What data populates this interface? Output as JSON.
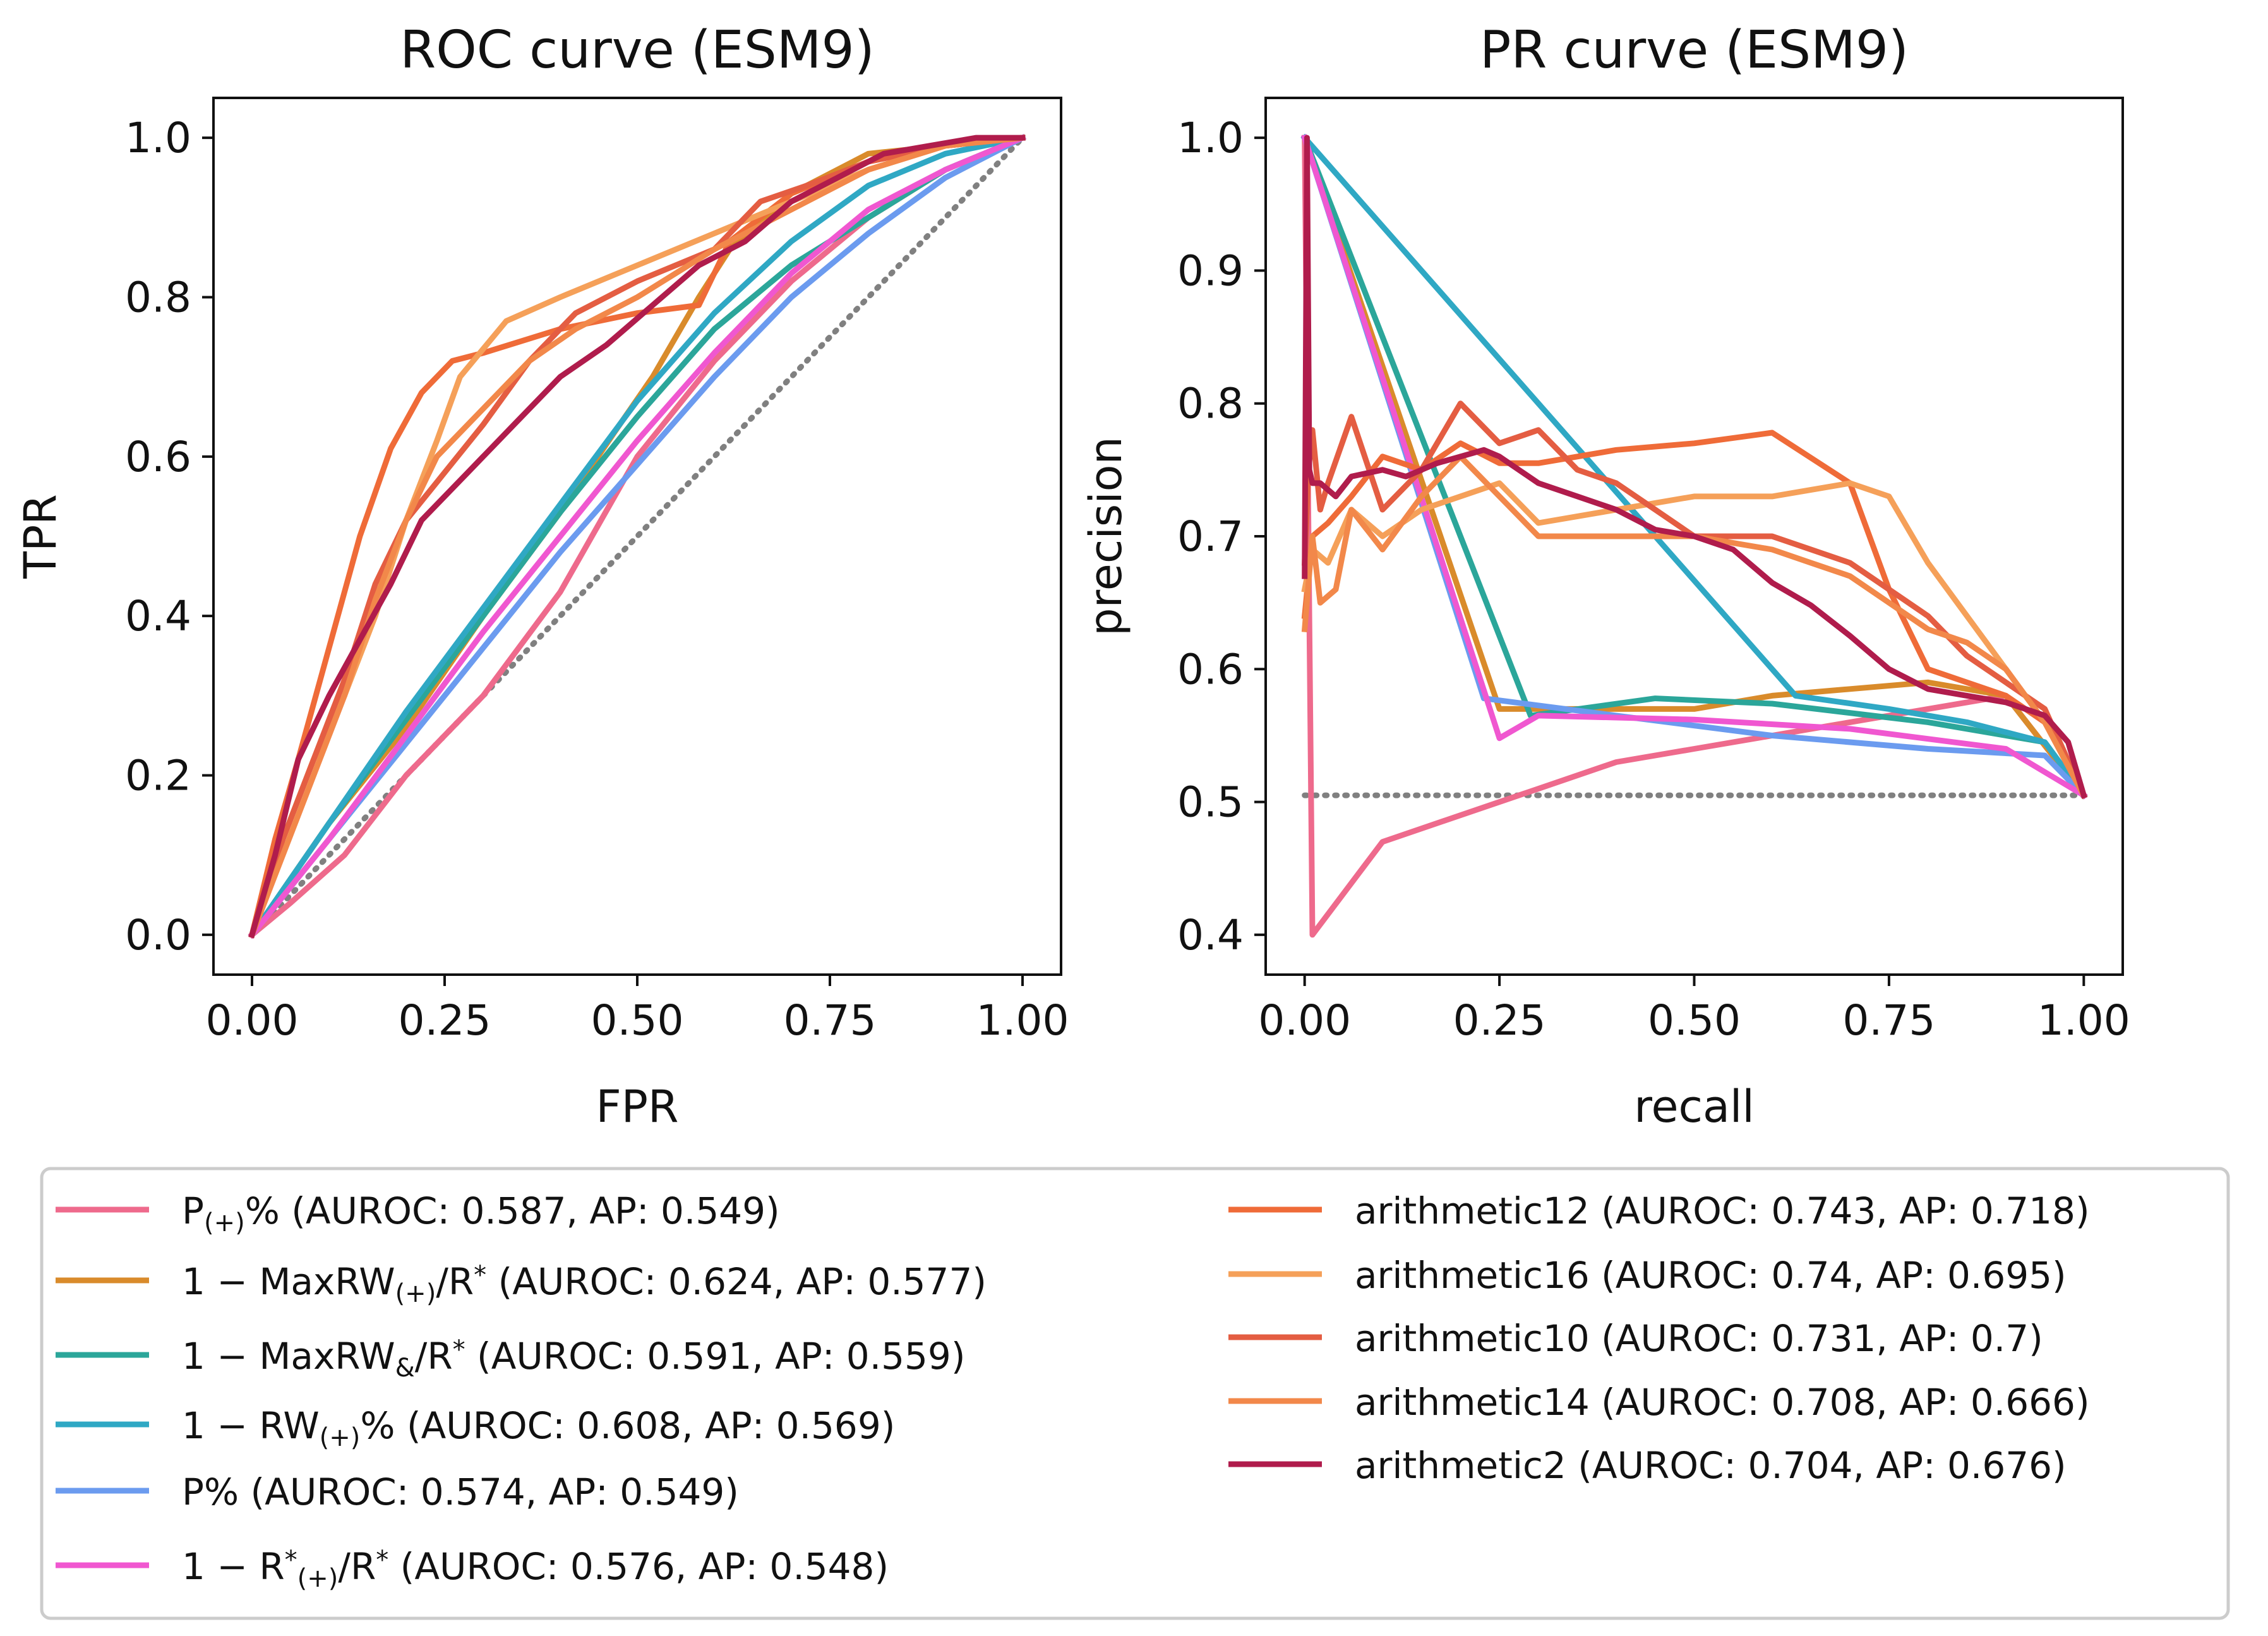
{
  "figure": {
    "background": "#ffffff"
  },
  "chart_data": [
    {
      "type": "line",
      "title": "ROC curve (ESM9)",
      "xlabel": "FPR",
      "ylabel": "TPR",
      "xlim": [
        -0.05,
        1.05
      ],
      "ylim": [
        -0.05,
        1.05
      ],
      "xticks": [
        0.0,
        0.25,
        0.5,
        0.75,
        1.0
      ],
      "xtick_labels": [
        "0.00",
        "0.25",
        "0.50",
        "0.75",
        "1.00"
      ],
      "yticks": [
        0.0,
        0.2,
        0.4,
        0.6,
        0.8,
        1.0
      ],
      "ytick_labels": [
        "0.0",
        "0.2",
        "0.4",
        "0.6",
        "0.8",
        "1.0"
      ],
      "grid": false,
      "baseline": {
        "style": "dotted",
        "color": "#808080",
        "x": [
          0,
          1
        ],
        "y": [
          0,
          1
        ]
      },
      "series": [
        {
          "key": "p_plus_pct",
          "color": "#ee6a8c",
          "x": [
            0,
            0.05,
            0.12,
            0.2,
            0.3,
            0.4,
            0.5,
            0.6,
            0.7,
            0.8,
            0.9,
            1.0
          ],
          "y": [
            0,
            0.04,
            0.1,
            0.2,
            0.3,
            0.43,
            0.6,
            0.72,
            0.82,
            0.9,
            0.96,
            1.0
          ]
        },
        {
          "key": "maxrw_plus",
          "color": "#d98b2b",
          "x": [
            0,
            0.05,
            0.1,
            0.2,
            0.3,
            0.4,
            0.47,
            0.52,
            0.58,
            0.62,
            0.7,
            0.8,
            0.9,
            1.0
          ],
          "y": [
            0,
            0.07,
            0.14,
            0.26,
            0.4,
            0.53,
            0.63,
            0.7,
            0.8,
            0.86,
            0.93,
            0.98,
            0.99,
            1.0
          ]
        },
        {
          "key": "maxrw_amp",
          "color": "#2ba69a",
          "x": [
            0,
            0.1,
            0.2,
            0.3,
            0.4,
            0.5,
            0.6,
            0.7,
            0.8,
            0.9,
            1.0
          ],
          "y": [
            0,
            0.14,
            0.27,
            0.4,
            0.53,
            0.65,
            0.76,
            0.84,
            0.9,
            0.96,
            1.0
          ]
        },
        {
          "key": "rw_plus_pct",
          "color": "#2fa8c4",
          "x": [
            0,
            0.1,
            0.2,
            0.3,
            0.4,
            0.5,
            0.6,
            0.7,
            0.8,
            0.9,
            1.0
          ],
          "y": [
            0,
            0.14,
            0.28,
            0.41,
            0.54,
            0.67,
            0.78,
            0.87,
            0.94,
            0.98,
            1.0
          ]
        },
        {
          "key": "p_pct",
          "color": "#6b9bef",
          "x": [
            0,
            0.1,
            0.2,
            0.3,
            0.4,
            0.5,
            0.6,
            0.7,
            0.8,
            0.9,
            1.0
          ],
          "y": [
            0,
            0.12,
            0.24,
            0.36,
            0.48,
            0.59,
            0.7,
            0.8,
            0.88,
            0.95,
            1.0
          ]
        },
        {
          "key": "r_plus",
          "color": "#f057d0",
          "x": [
            0,
            0.1,
            0.2,
            0.3,
            0.4,
            0.5,
            0.6,
            0.7,
            0.8,
            0.9,
            1.0
          ],
          "y": [
            0,
            0.12,
            0.25,
            0.38,
            0.5,
            0.62,
            0.73,
            0.83,
            0.91,
            0.96,
            1.0
          ]
        },
        {
          "key": "arith12",
          "color": "#ef6b38",
          "x": [
            0,
            0.03,
            0.06,
            0.1,
            0.14,
            0.18,
            0.22,
            0.26,
            0.3,
            0.4,
            0.5,
            0.58,
            0.62,
            0.7,
            0.8,
            0.9,
            1.0
          ],
          "y": [
            0,
            0.12,
            0.22,
            0.36,
            0.5,
            0.61,
            0.68,
            0.72,
            0.73,
            0.76,
            0.78,
            0.79,
            0.87,
            0.93,
            0.97,
            0.99,
            1.0
          ]
        },
        {
          "key": "arith16",
          "color": "#f5a059",
          "x": [
            0,
            0.04,
            0.08,
            0.12,
            0.16,
            0.2,
            0.24,
            0.27,
            0.33,
            0.4,
            0.5,
            0.6,
            0.7,
            0.8,
            0.9,
            1.0
          ],
          "y": [
            0,
            0.12,
            0.22,
            0.3,
            0.4,
            0.52,
            0.62,
            0.7,
            0.77,
            0.8,
            0.84,
            0.88,
            0.92,
            0.96,
            0.99,
            1.0
          ]
        },
        {
          "key": "arith10",
          "color": "#e45d42",
          "x": [
            0,
            0.04,
            0.08,
            0.12,
            0.16,
            0.2,
            0.25,
            0.3,
            0.36,
            0.42,
            0.5,
            0.6,
            0.66,
            0.72,
            0.8,
            0.9,
            1.0
          ],
          "y": [
            0,
            0.12,
            0.22,
            0.32,
            0.44,
            0.52,
            0.58,
            0.64,
            0.72,
            0.78,
            0.82,
            0.86,
            0.92,
            0.94,
            0.97,
            0.99,
            1.0
          ]
        },
        {
          "key": "arith14",
          "color": "#f2884a",
          "x": [
            0,
            0.04,
            0.08,
            0.12,
            0.16,
            0.2,
            0.24,
            0.3,
            0.36,
            0.42,
            0.5,
            0.6,
            0.7,
            0.8,
            0.9,
            1.0
          ],
          "y": [
            0,
            0.1,
            0.2,
            0.3,
            0.42,
            0.52,
            0.6,
            0.66,
            0.72,
            0.76,
            0.8,
            0.86,
            0.91,
            0.96,
            0.99,
            1.0
          ]
        },
        {
          "key": "arith2",
          "color": "#b01c4c",
          "x": [
            0,
            0.03,
            0.06,
            0.1,
            0.14,
            0.18,
            0.22,
            0.28,
            0.34,
            0.4,
            0.46,
            0.52,
            0.58,
            0.64,
            0.7,
            0.76,
            0.82,
            0.88,
            0.94,
            1.0
          ],
          "y": [
            0,
            0.1,
            0.22,
            0.3,
            0.37,
            0.44,
            0.52,
            0.58,
            0.64,
            0.7,
            0.74,
            0.79,
            0.84,
            0.87,
            0.92,
            0.95,
            0.98,
            0.99,
            1.0,
            1.0
          ]
        }
      ]
    },
    {
      "type": "line",
      "title": "PR curve (ESM9)",
      "xlabel": "recall",
      "ylabel": "precision",
      "xlim": [
        -0.05,
        1.05
      ],
      "ylim": [
        0.37,
        1.03
      ],
      "xticks": [
        0.0,
        0.25,
        0.5,
        0.75,
        1.0
      ],
      "xtick_labels": [
        "0.00",
        "0.25",
        "0.50",
        "0.75",
        "1.00"
      ],
      "yticks": [
        0.4,
        0.5,
        0.6,
        0.7,
        0.8,
        0.9,
        1.0
      ],
      "ytick_labels": [
        "0.4",
        "0.5",
        "0.6",
        "0.7",
        "0.8",
        "0.9",
        "1.0"
      ],
      "grid": false,
      "baseline": {
        "style": "dotted",
        "color": "#808080",
        "x": [
          0,
          1
        ],
        "y": [
          0.505,
          0.505
        ]
      },
      "series": [
        {
          "key": "p_plus_pct",
          "color": "#ee6a8c",
          "x": [
            0,
            0.01,
            0.1,
            0.2,
            0.3,
            0.4,
            0.5,
            0.6,
            0.7,
            0.8,
            0.9,
            1.0
          ],
          "y": [
            1.0,
            0.4,
            0.47,
            0.49,
            0.51,
            0.53,
            0.54,
            0.55,
            0.56,
            0.57,
            0.58,
            0.505
          ]
        },
        {
          "key": "maxrw_plus",
          "color": "#d98b2b",
          "x": [
            0,
            0.25,
            0.5,
            0.6,
            0.7,
            0.8,
            0.9,
            1.0
          ],
          "y": [
            1.0,
            0.57,
            0.57,
            0.58,
            0.585,
            0.59,
            0.58,
            0.505
          ]
        },
        {
          "key": "maxrw_amp",
          "color": "#2ba69a",
          "x": [
            0,
            0.29,
            0.45,
            0.6,
            0.8,
            0.95,
            1.0
          ],
          "y": [
            1.0,
            0.565,
            0.578,
            0.574,
            0.56,
            0.545,
            0.505
          ]
        },
        {
          "key": "rw_plus_pct",
          "color": "#2fa8c4",
          "x": [
            0,
            0.63,
            0.75,
            0.85,
            0.95,
            1.0
          ],
          "y": [
            1.0,
            0.58,
            0.57,
            0.56,
            0.545,
            0.505
          ]
        },
        {
          "key": "p_pct",
          "color": "#6b9bef",
          "x": [
            0,
            0.23,
            0.4,
            0.6,
            0.8,
            0.95,
            1.0
          ],
          "y": [
            1.0,
            0.578,
            0.565,
            0.55,
            0.54,
            0.535,
            0.505
          ]
        },
        {
          "key": "r_plus",
          "color": "#f057d0",
          "x": [
            0,
            0.25,
            0.3,
            0.5,
            0.7,
            0.9,
            1.0
          ],
          "y": [
            1.0,
            0.548,
            0.565,
            0.562,
            0.555,
            0.54,
            0.505
          ]
        },
        {
          "key": "arith12",
          "color": "#ef6b38",
          "x": [
            0,
            0.01,
            0.03,
            0.06,
            0.1,
            0.15,
            0.2,
            0.25,
            0.3,
            0.4,
            0.5,
            0.6,
            0.7,
            0.75,
            0.8,
            0.9,
            0.95,
            1.0
          ],
          "y": [
            0.64,
            0.7,
            0.71,
            0.73,
            0.76,
            0.75,
            0.77,
            0.755,
            0.755,
            0.765,
            0.77,
            0.778,
            0.74,
            0.66,
            0.6,
            0.58,
            0.56,
            0.505
          ]
        },
        {
          "key": "arith16",
          "color": "#f5a059",
          "x": [
            0,
            0.01,
            0.03,
            0.06,
            0.1,
            0.15,
            0.2,
            0.25,
            0.3,
            0.4,
            0.5,
            0.6,
            0.7,
            0.75,
            0.8,
            0.9,
            0.95,
            1.0
          ],
          "y": [
            0.66,
            0.69,
            0.68,
            0.72,
            0.7,
            0.72,
            0.73,
            0.74,
            0.71,
            0.72,
            0.73,
            0.73,
            0.74,
            0.73,
            0.68,
            0.6,
            0.56,
            0.505
          ]
        },
        {
          "key": "arith10",
          "color": "#e45d42",
          "x": [
            0,
            0.005,
            0.01,
            0.02,
            0.03,
            0.06,
            0.1,
            0.15,
            0.2,
            0.25,
            0.3,
            0.35,
            0.4,
            0.45,
            0.5,
            0.55,
            0.6,
            0.65,
            0.7,
            0.75,
            0.8,
            0.85,
            0.9,
            0.95,
            1.0
          ],
          "y": [
            0.68,
            0.75,
            0.78,
            0.72,
            0.74,
            0.79,
            0.72,
            0.75,
            0.8,
            0.77,
            0.78,
            0.75,
            0.74,
            0.72,
            0.7,
            0.7,
            0.7,
            0.69,
            0.68,
            0.66,
            0.64,
            0.61,
            0.59,
            0.57,
            0.505
          ]
        },
        {
          "key": "arith14",
          "color": "#f2884a",
          "x": [
            0,
            0.01,
            0.02,
            0.04,
            0.06,
            0.1,
            0.15,
            0.2,
            0.25,
            0.3,
            0.35,
            0.4,
            0.5,
            0.6,
            0.65,
            0.7,
            0.75,
            0.8,
            0.85,
            0.9,
            0.95,
            1.0
          ],
          "y": [
            0.63,
            0.7,
            0.65,
            0.66,
            0.72,
            0.69,
            0.73,
            0.76,
            0.73,
            0.7,
            0.7,
            0.7,
            0.7,
            0.69,
            0.68,
            0.67,
            0.65,
            0.63,
            0.62,
            0.6,
            0.56,
            0.505
          ]
        },
        {
          "key": "arith2",
          "color": "#b01c4c",
          "x": [
            0,
            0.003,
            0.006,
            0.01,
            0.02,
            0.04,
            0.06,
            0.1,
            0.13,
            0.17,
            0.2,
            0.23,
            0.25,
            0.3,
            0.35,
            0.4,
            0.45,
            0.5,
            0.55,
            0.6,
            0.65,
            0.7,
            0.75,
            0.8,
            0.85,
            0.9,
            0.95,
            0.98,
            1.0
          ],
          "y": [
            0.67,
            1.0,
            0.75,
            0.74,
            0.74,
            0.73,
            0.745,
            0.75,
            0.745,
            0.755,
            0.76,
            0.765,
            0.76,
            0.74,
            0.73,
            0.72,
            0.705,
            0.7,
            0.69,
            0.665,
            0.648,
            0.625,
            0.6,
            0.585,
            0.58,
            0.575,
            0.565,
            0.545,
            0.505
          ]
        }
      ]
    }
  ],
  "legend": {
    "placement": "bottom",
    "left_column": [
      {
        "key": "p_plus_pct",
        "color": "#ee6a8c",
        "parts": [
          {
            "t": "P"
          },
          {
            "t": "(+)",
            "s": "sub"
          },
          {
            "t": "% (AUROC: 0.587, AP: 0.549)"
          }
        ]
      },
      {
        "key": "maxrw_plus",
        "color": "#d98b2b",
        "parts": [
          {
            "t": "1 − MaxRW"
          },
          {
            "t": "(+)",
            "s": "sub"
          },
          {
            "t": "/R"
          },
          {
            "t": "*",
            "s": "sup"
          },
          {
            "t": "  (AUROC: 0.624, AP: 0.577)"
          }
        ]
      },
      {
        "key": "maxrw_amp",
        "color": "#2ba69a",
        "parts": [
          {
            "t": "1 − MaxRW"
          },
          {
            "t": "&",
            "s": "sub"
          },
          {
            "t": "/R"
          },
          {
            "t": "*",
            "s": "sup"
          },
          {
            "t": "  (AUROC: 0.591, AP: 0.559)"
          }
        ]
      },
      {
        "key": "rw_plus_pct",
        "color": "#2fa8c4",
        "parts": [
          {
            "t": "1 − RW"
          },
          {
            "t": "(+)",
            "s": "sub"
          },
          {
            "t": "% (AUROC: 0.608, AP: 0.569)"
          }
        ]
      },
      {
        "key": "p_pct",
        "color": "#6b9bef",
        "parts": [
          {
            "t": "P% (AUROC: 0.574, AP: 0.549)"
          }
        ]
      },
      {
        "key": "r_plus",
        "color": "#f057d0",
        "parts": [
          {
            "t": "1 − R"
          },
          {
            "t": "*",
            "s": "sup"
          },
          {
            "t": "(+)",
            "s": "sub"
          },
          {
            "t": "/R"
          },
          {
            "t": "*",
            "s": "sup"
          },
          {
            "t": "  (AUROC: 0.576, AP: 0.548)"
          }
        ]
      }
    ],
    "right_column": [
      {
        "key": "arith12",
        "color": "#ef6b38",
        "parts": [
          {
            "t": "arithmetic12 (AUROC: 0.743, AP: 0.718)"
          }
        ]
      },
      {
        "key": "arith16",
        "color": "#f5a059",
        "parts": [
          {
            "t": "arithmetic16 (AUROC: 0.74, AP: 0.695)"
          }
        ]
      },
      {
        "key": "arith10",
        "color": "#e45d42",
        "parts": [
          {
            "t": "arithmetic10 (AUROC: 0.731, AP: 0.7)"
          }
        ]
      },
      {
        "key": "arith14",
        "color": "#f2884a",
        "parts": [
          {
            "t": "arithmetic14 (AUROC: 0.708, AP: 0.666)"
          }
        ]
      },
      {
        "key": "arith2",
        "color": "#b01c4c",
        "parts": [
          {
            "t": "arithmetic2 (AUROC: 0.704, AP: 0.676)"
          }
        ]
      }
    ]
  }
}
